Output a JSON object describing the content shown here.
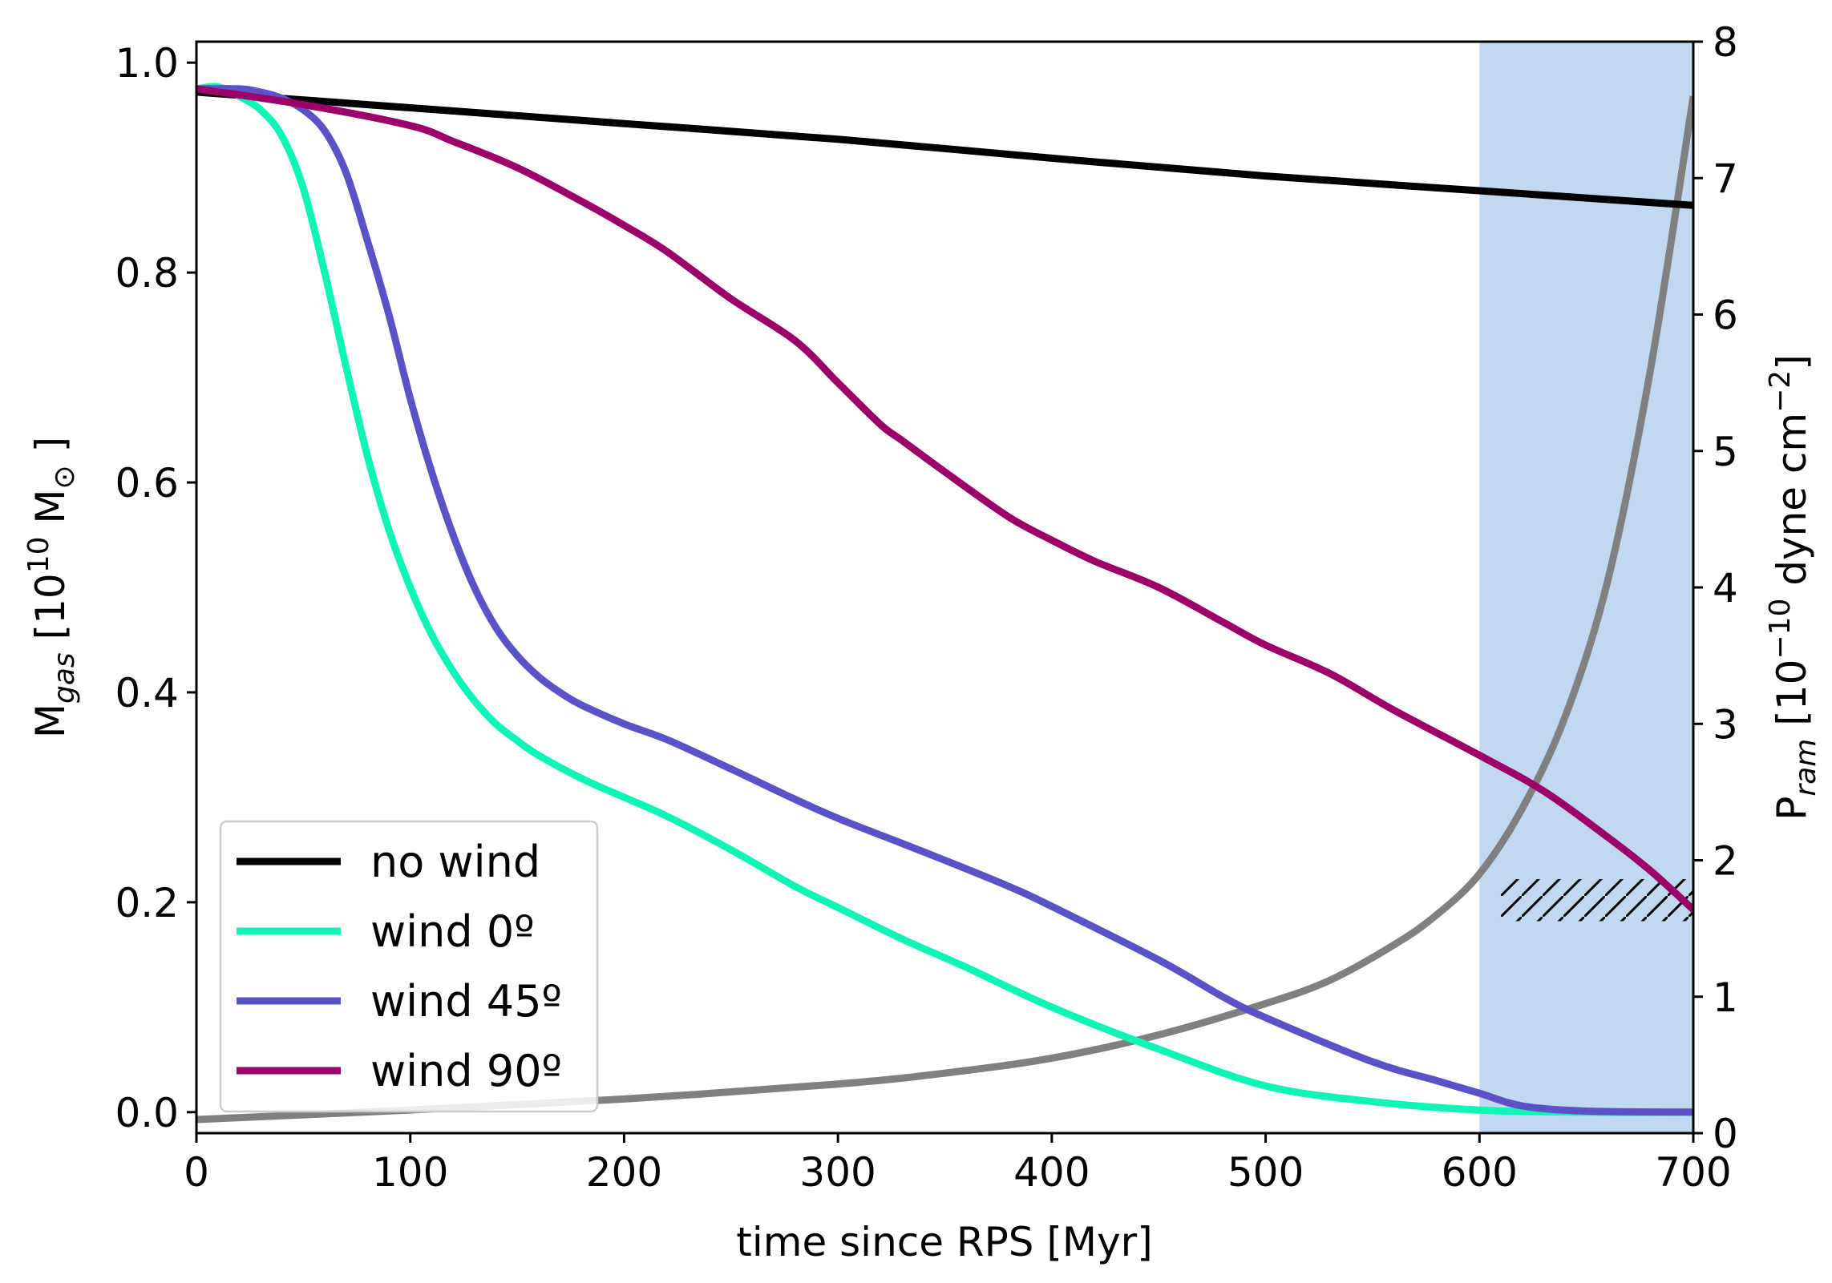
{
  "chart_data": {
    "type": "line",
    "title": "",
    "xlabel": "time since RPS [Myr]",
    "ylabel": {
      "main": "M",
      "sub": "gas",
      "tail": " [10",
      "exp": "10",
      "end": " M",
      "sun": "⊙",
      "close": " ]"
    },
    "ylabel_right": {
      "main": "P",
      "sub": "ram",
      "mid": " [10",
      "exp": "−10",
      "end": " dyne cm",
      "exp2": "−2",
      "close": "]"
    },
    "xlim": [
      0,
      700
    ],
    "ylim": [
      -0.02,
      1.02
    ],
    "ylim_right": [
      0,
      8
    ],
    "xticks": [
      "0",
      "100",
      "200",
      "300",
      "400",
      "500",
      "600",
      "700"
    ],
    "yticks": [
      "0.0",
      "0.2",
      "0.4",
      "0.6",
      "0.8",
      "1.0"
    ],
    "yticks_right": [
      "0",
      "1",
      "2",
      "3",
      "4",
      "5",
      "6",
      "7",
      "8"
    ],
    "grid": false,
    "legend_position": "lower-left",
    "shaded_region": {
      "x": [
        600,
        700
      ],
      "color": "#c0d9f1"
    },
    "hatched_region": {
      "x": [
        610,
        700
      ],
      "y": [
        0.182,
        0.222
      ]
    },
    "series": [
      {
        "name": "no wind",
        "color": "#000000",
        "axis": "left",
        "x": [
          0,
          100,
          200,
          300,
          400,
          500,
          600,
          700
        ],
        "y": [
          0.972,
          0.957,
          0.942,
          0.927,
          0.909,
          0.892,
          0.878,
          0.864
        ]
      },
      {
        "name": "wind 0º",
        "color": "#0ff5b5",
        "axis": "left",
        "x": [
          0,
          10,
          20,
          30,
          40,
          50,
          60,
          70,
          80,
          90,
          100,
          110,
          120,
          130,
          140,
          150,
          160,
          180,
          200,
          220,
          250,
          280,
          300,
          330,
          360,
          400,
          450,
          500,
          550,
          600,
          650,
          700
        ],
        "y": [
          0.975,
          0.977,
          0.968,
          0.955,
          0.93,
          0.88,
          0.8,
          0.71,
          0.625,
          0.555,
          0.5,
          0.455,
          0.42,
          0.392,
          0.37,
          0.354,
          0.34,
          0.318,
          0.3,
          0.282,
          0.25,
          0.215,
          0.195,
          0.165,
          0.138,
          0.1,
          0.06,
          0.025,
          0.01,
          0.002,
          0.0,
          0.0
        ]
      },
      {
        "name": "wind 45º",
        "color": "#5b52c8",
        "axis": "left",
        "x": [
          0,
          20,
          30,
          40,
          50,
          60,
          70,
          80,
          90,
          100,
          110,
          120,
          130,
          140,
          150,
          160,
          170,
          180,
          200,
          220,
          250,
          280,
          300,
          330,
          350,
          380,
          400,
          450,
          480,
          500,
          550,
          580,
          600,
          620,
          650,
          700
        ],
        "y": [
          0.975,
          0.975,
          0.972,
          0.966,
          0.955,
          0.935,
          0.895,
          0.83,
          0.76,
          0.68,
          0.61,
          0.55,
          0.5,
          0.462,
          0.435,
          0.415,
          0.4,
          0.388,
          0.37,
          0.355,
          0.327,
          0.298,
          0.28,
          0.256,
          0.24,
          0.215,
          0.196,
          0.145,
          0.11,
          0.09,
          0.048,
          0.03,
          0.018,
          0.006,
          0.001,
          0.0
        ]
      },
      {
        "name": "wind 90º",
        "color": "#9c0069",
        "axis": "left",
        "x": [
          0,
          50,
          100,
          120,
          150,
          180,
          200,
          220,
          250,
          280,
          300,
          320,
          330,
          350,
          380,
          400,
          420,
          450,
          480,
          500,
          530,
          560,
          600,
          630,
          660,
          680,
          700
        ],
        "y": [
          0.975,
          0.96,
          0.94,
          0.925,
          0.9,
          0.868,
          0.845,
          0.82,
          0.775,
          0.735,
          0.695,
          0.655,
          0.64,
          0.61,
          0.567,
          0.545,
          0.525,
          0.5,
          0.467,
          0.445,
          0.418,
          0.383,
          0.34,
          0.306,
          0.262,
          0.23,
          0.193
        ]
      },
      {
        "name": "",
        "color": "#808080",
        "axis": "right",
        "x": [
          0,
          100,
          200,
          300,
          350,
          400,
          450,
          500,
          530,
          560,
          580,
          600,
          620,
          640,
          660,
          680,
          700
        ],
        "y": [
          0.1,
          0.17,
          0.25,
          0.36,
          0.44,
          0.55,
          0.72,
          0.95,
          1.12,
          1.38,
          1.6,
          1.9,
          2.38,
          3.05,
          4.05,
          5.6,
          7.6
        ]
      }
    ]
  }
}
